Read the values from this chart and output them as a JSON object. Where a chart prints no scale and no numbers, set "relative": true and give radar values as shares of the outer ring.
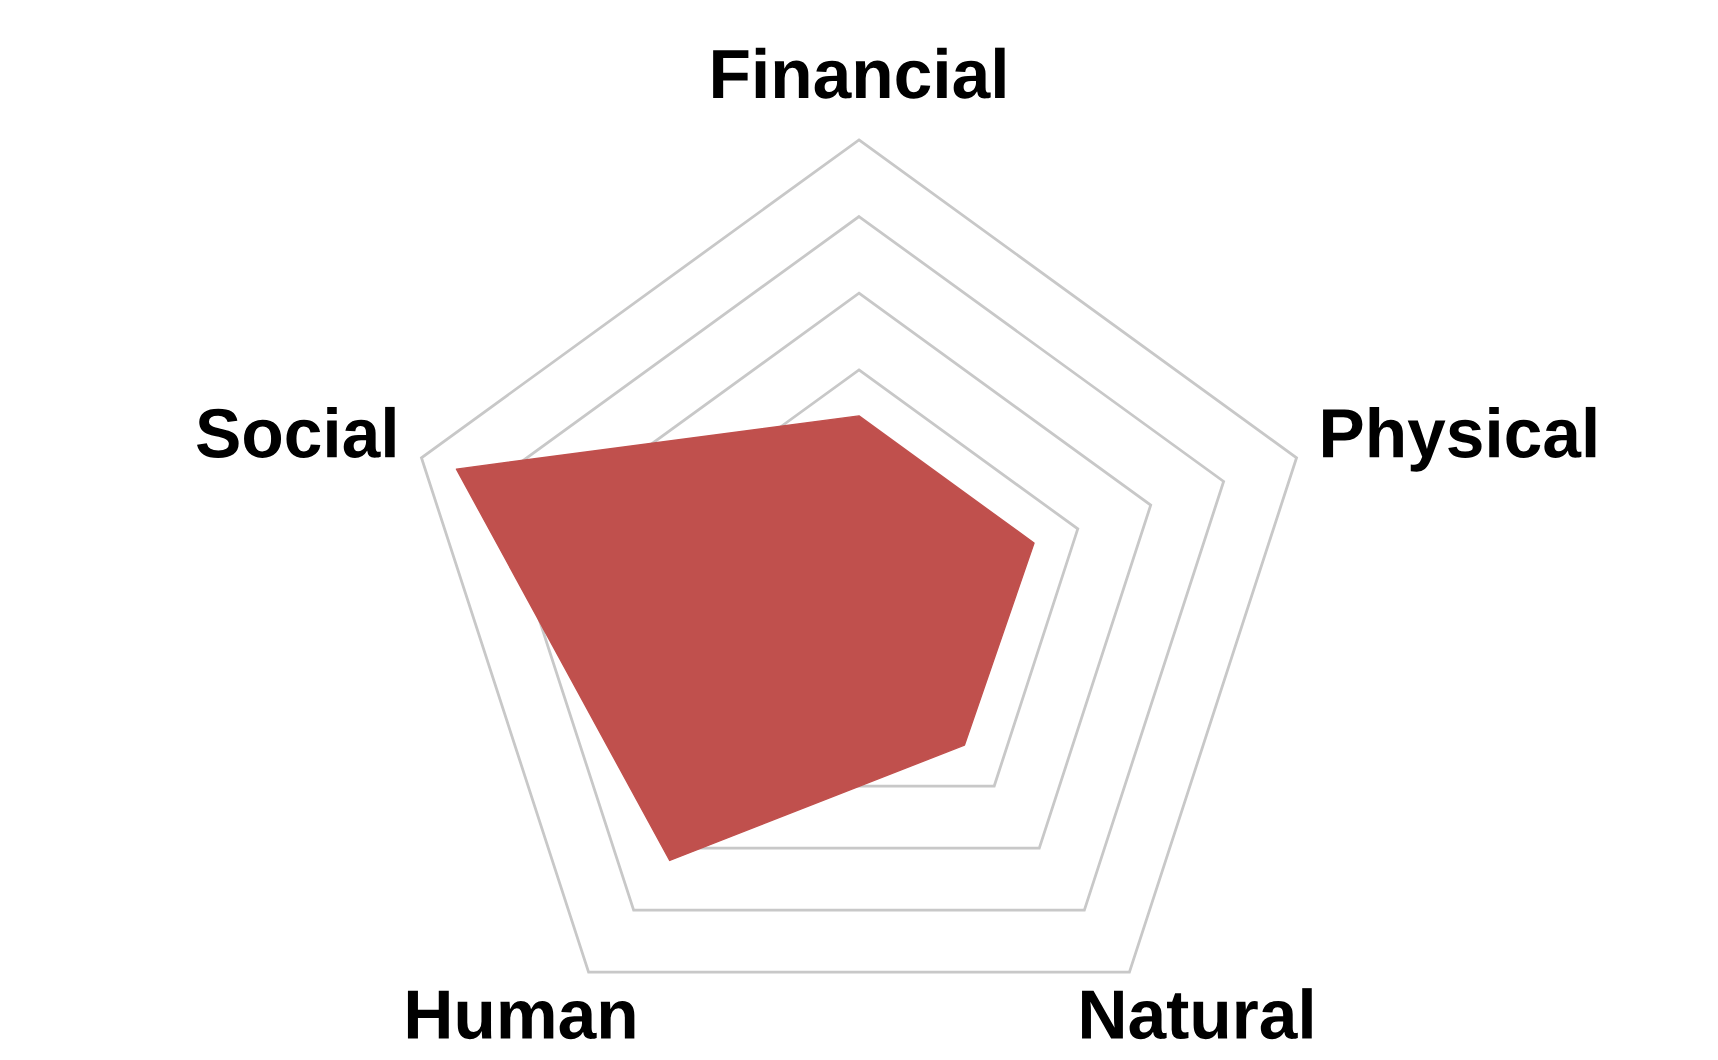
{
  "chart_data": {
    "type": "radar",
    "relative": true,
    "grid": true,
    "categories": [
      "Financial",
      "Physical",
      "Natural",
      "Human",
      "Social"
    ],
    "series": [
      {
        "color": "#c0504d",
        "values": [
          0.4,
          0.4,
          0.39,
          0.7,
          0.92
        ]
      }
    ]
  }
}
